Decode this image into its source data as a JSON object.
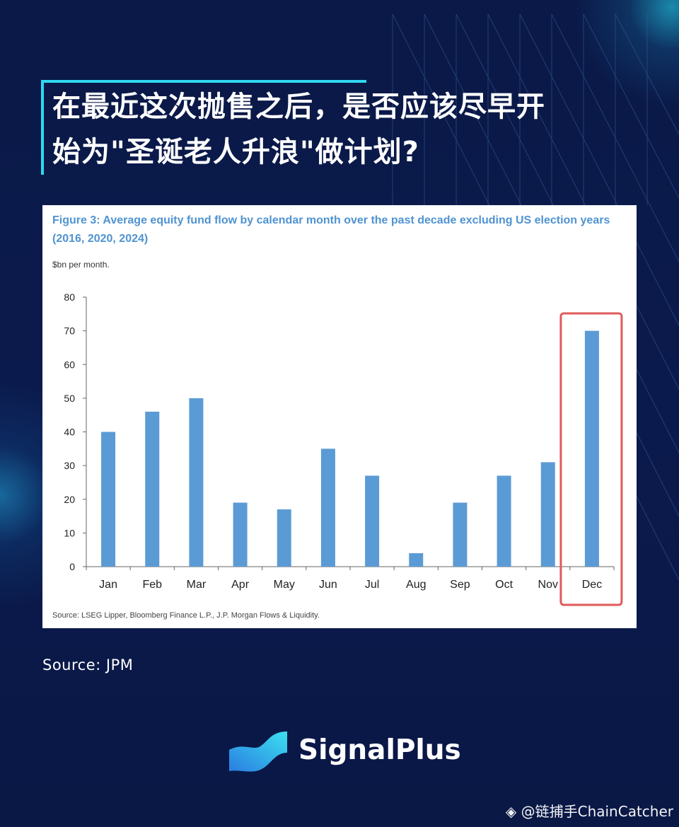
{
  "headline": "在最近这次抛售之后，是否应该尽早开\n始为\"圣诞老人升浪\"做计划?",
  "source_text": "Source: JPM",
  "brand": {
    "name": "SignalPlus",
    "logo_icon": "signalplus-wave-logo-icon"
  },
  "watermark": {
    "icon": "binance-diamond-icon",
    "text": "@链捕手ChainCatcher"
  },
  "colors": {
    "background": "#0b1a4a",
    "accent": "#2fd9f0",
    "bar": "#5b9bd5",
    "highlight": "#e05a5a",
    "title_blue": "#4f93d1"
  },
  "chart_data": {
    "type": "bar",
    "title": "Figure 3: Average equity fund flow by calendar month over the past decade excluding US election years (2016, 2020, 2024)",
    "unit_label": "$bn per month.",
    "source": "Source: LSEG Lipper, Bloomberg Finance L.P., J.P. Morgan Flows & Liquidity.",
    "categories": [
      "Jan",
      "Feb",
      "Mar",
      "Apr",
      "May",
      "Jun",
      "Jul",
      "Aug",
      "Sep",
      "Oct",
      "Nov",
      "Dec"
    ],
    "values": [
      40,
      46,
      50,
      19,
      17,
      35,
      27,
      4,
      19,
      27,
      31,
      70
    ],
    "ylim": [
      0,
      80
    ],
    "yticks": [
      0,
      10,
      20,
      30,
      40,
      50,
      60,
      70,
      80
    ],
    "highlight_category": "Dec",
    "grid": false
  }
}
